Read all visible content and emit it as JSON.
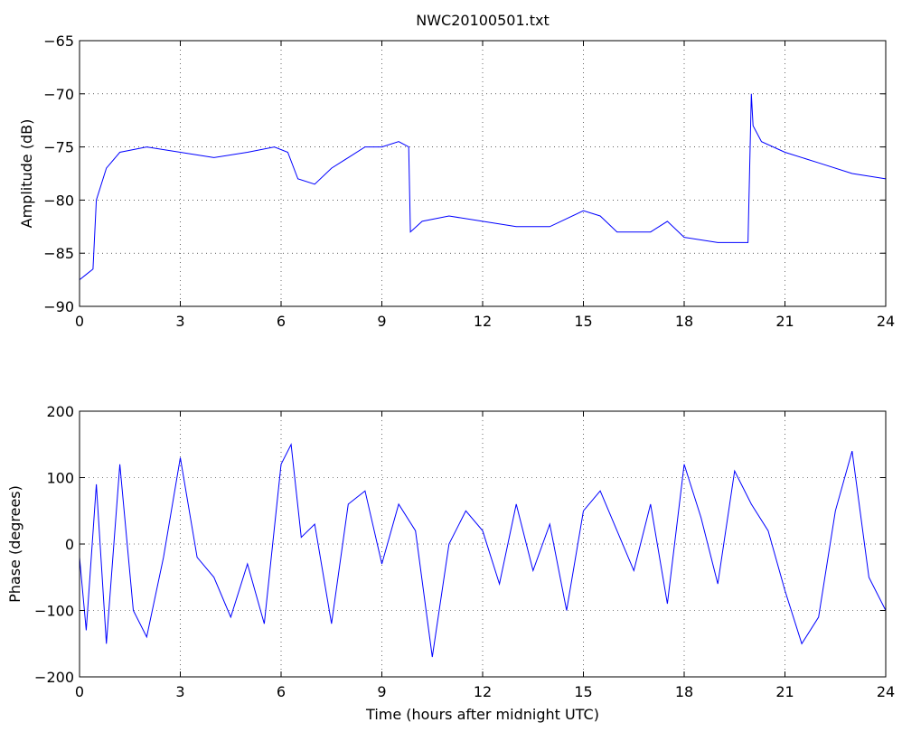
{
  "chart_data": [
    {
      "type": "line",
      "title": "NWC20100501.txt",
      "xlabel": "",
      "ylabel": "Amplitude (dB)",
      "xlim": [
        0,
        24
      ],
      "ylim": [
        -90,
        -65
      ],
      "xticks": [
        0,
        3,
        6,
        9,
        12,
        15,
        18,
        21,
        24
      ],
      "yticks": [
        -90,
        -85,
        -80,
        -75,
        -70,
        -65
      ],
      "grid": true,
      "line_color": "#0000ff",
      "series": [
        {
          "x": [
            0,
            0.2,
            0.4,
            0.5,
            0.8,
            1.2,
            2,
            3,
            4,
            5,
            5.8,
            6.2,
            6.5,
            7,
            7.5,
            8,
            8.5,
            9,
            9.5,
            9.8,
            9.85,
            10.2,
            11,
            12,
            13,
            14,
            15,
            15.5,
            16,
            17,
            17.5,
            18,
            19,
            19.9,
            20,
            20.05,
            20.3,
            21,
            22,
            23,
            24
          ],
          "y": [
            -87.5,
            -87,
            -86.5,
            -80,
            -77,
            -75.5,
            -75,
            -75.5,
            -76,
            -75.5,
            -75,
            -75.5,
            -78,
            -78.5,
            -77,
            -76,
            -75,
            -75,
            -74.5,
            -75,
            -83,
            -82,
            -81.5,
            -82,
            -82.5,
            -82.5,
            -81,
            -81.5,
            -83,
            -83,
            -82,
            -83.5,
            -84,
            -84,
            -70,
            -73,
            -74.5,
            -75.5,
            -76.5,
            -77.5,
            -78
          ]
        }
      ]
    },
    {
      "type": "line",
      "title": "",
      "xlabel": "Time (hours after midnight UTC)",
      "ylabel": "Phase (degrees)",
      "xlim": [
        0,
        24
      ],
      "ylim": [
        -200,
        200
      ],
      "xticks": [
        0,
        3,
        6,
        9,
        12,
        15,
        18,
        21,
        24
      ],
      "yticks": [
        -200,
        -100,
        0,
        100,
        200
      ],
      "grid": true,
      "line_color": "#0000ff",
      "series": [
        {
          "x": [
            0,
            0.2,
            0.5,
            0.8,
            1.2,
            1.6,
            2,
            2.5,
            3,
            3.5,
            4,
            4.5,
            5,
            5.5,
            6,
            6.3,
            6.6,
            7,
            7.5,
            8,
            8.5,
            9,
            9.5,
            10,
            10.5,
            11,
            11.5,
            12,
            12.5,
            13,
            13.5,
            14,
            14.5,
            15,
            15.5,
            16,
            16.5,
            17,
            17.5,
            18,
            18.5,
            19,
            19.5,
            20,
            20.5,
            21,
            21.5,
            22,
            22.5,
            23,
            23.5,
            24
          ],
          "y": [
            -20,
            -130,
            90,
            -150,
            120,
            -100,
            -140,
            -20,
            130,
            -20,
            -50,
            -110,
            -30,
            -120,
            120,
            150,
            10,
            30,
            -120,
            60,
            80,
            -30,
            60,
            20,
            -170,
            0,
            50,
            20,
            -60,
            60,
            -40,
            30,
            -100,
            50,
            80,
            20,
            -40,
            60,
            -90,
            120,
            40,
            -60,
            110,
            60,
            20,
            -70,
            -150,
            -110,
            50,
            140,
            -50,
            -100
          ]
        }
      ]
    }
  ]
}
